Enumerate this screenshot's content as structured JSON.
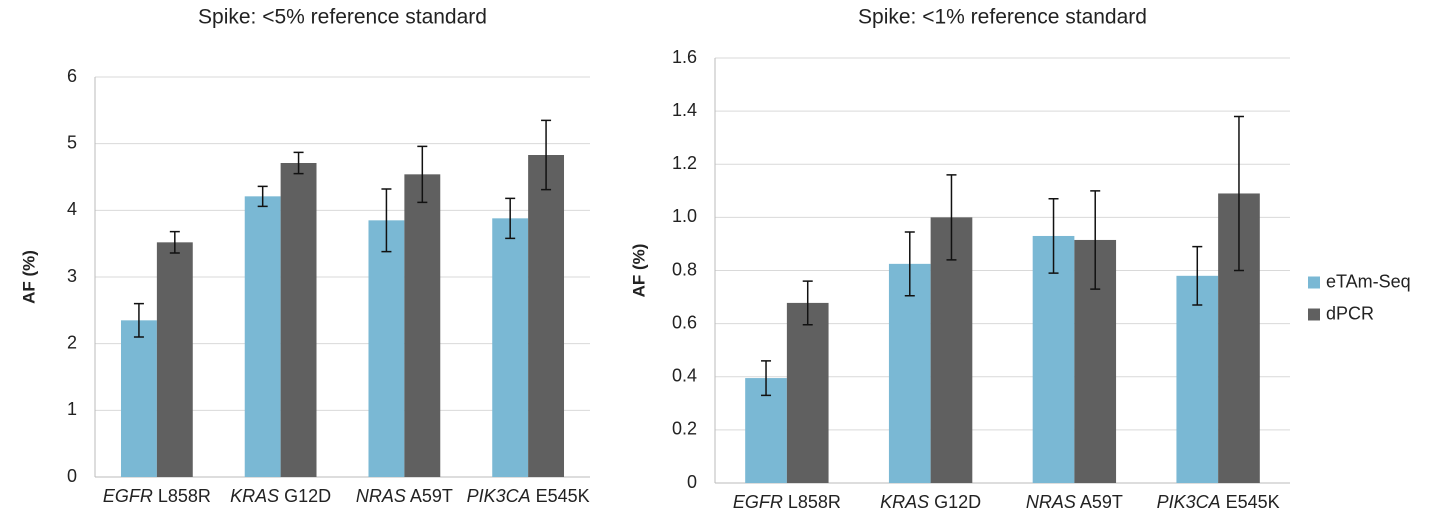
{
  "chart_data": [
    {
      "type": "bar",
      "title": "Spike: <5% reference standard",
      "y_label": "AF (%)",
      "categories": [
        "EGFR L858R",
        "KRAS G12D",
        "NRAS A59T",
        "PIK3CA E545K"
      ],
      "series": [
        {
          "name": "eTAm-Seq",
          "color": "#7ab8d4",
          "values": [
            2.35,
            4.21,
            3.85,
            3.88
          ],
          "errors": [
            0.25,
            0.15,
            0.47,
            0.3
          ]
        },
        {
          "name": "dPCR",
          "color": "#606060",
          "values": [
            3.52,
            4.71,
            4.54,
            4.83
          ],
          "errors": [
            0.16,
            0.16,
            0.42,
            0.52
          ]
        }
      ],
      "ylim": [
        0,
        6
      ],
      "yticks": [
        0,
        1,
        2,
        3,
        4,
        5,
        6
      ],
      "grid": true
    },
    {
      "type": "bar",
      "title": "Spike: <1% reference standard",
      "y_label": "AF (%)",
      "categories": [
        "EGFR L858R",
        "KRAS G12D",
        "NRAS A59T",
        "PIK3CA E545K"
      ],
      "series": [
        {
          "name": "eTAm-Seq",
          "color": "#7ab8d4",
          "values": [
            0.395,
            0.825,
            0.93,
            0.78
          ],
          "errors": [
            0.065,
            0.12,
            0.14,
            0.11
          ]
        },
        {
          "name": "dPCR",
          "color": "#606060",
          "values": [
            0.678,
            1.0,
            0.915,
            1.09
          ],
          "errors": [
            0.082,
            0.16,
            0.185,
            0.29
          ]
        }
      ],
      "ylim": [
        0,
        1.6
      ],
      "yticks": [
        0,
        {
          "value": 0.2,
          "label": "0.2"
        },
        {
          "value": 0.4,
          "label": "0.4"
        },
        {
          "value": 0.6,
          "label": "0.6"
        },
        {
          "value": 0.8,
          "label": "0.8"
        },
        {
          "value": 1.0,
          "label": "1.0"
        },
        {
          "value": 1.2,
          "label": "1.2"
        },
        {
          "value": 1.4,
          "label": "1.4"
        },
        {
          "value": 1.6,
          "label": "1.6"
        }
      ],
      "grid": true,
      "legend": "right"
    }
  ]
}
